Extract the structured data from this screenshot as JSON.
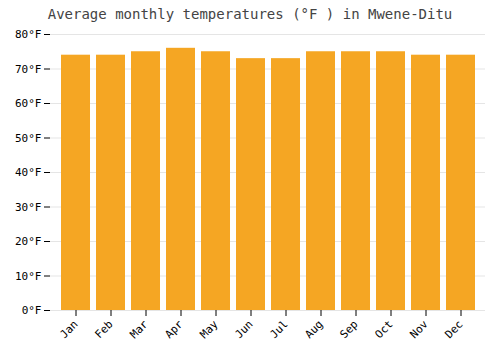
{
  "chart_data": {
    "type": "bar",
    "title": "Average monthly temperatures (°F ) in Mwene-Ditu",
    "categories": [
      "Jan",
      "Feb",
      "Mar",
      "Apr",
      "May",
      "Jun",
      "Jul",
      "Aug",
      "Sep",
      "Oct",
      "Nov",
      "Dec"
    ],
    "values": [
      74,
      74,
      75,
      76,
      75,
      73,
      73,
      75,
      75,
      75,
      74,
      74
    ],
    "color": "#F5A623",
    "ylim": [
      0,
      80
    ],
    "yticks": [
      {
        "value": 0,
        "label": "0°F"
      },
      {
        "value": 10,
        "label": "10°F"
      },
      {
        "value": 20,
        "label": "20°F"
      },
      {
        "value": 30,
        "label": "30°F"
      },
      {
        "value": 40,
        "label": "40°F"
      },
      {
        "value": 50,
        "label": "50°F"
      },
      {
        "value": 60,
        "label": "60°F"
      },
      {
        "value": 70,
        "label": "70°F"
      },
      {
        "value": 80,
        "label": "80°F"
      }
    ],
    "grid": true
  }
}
